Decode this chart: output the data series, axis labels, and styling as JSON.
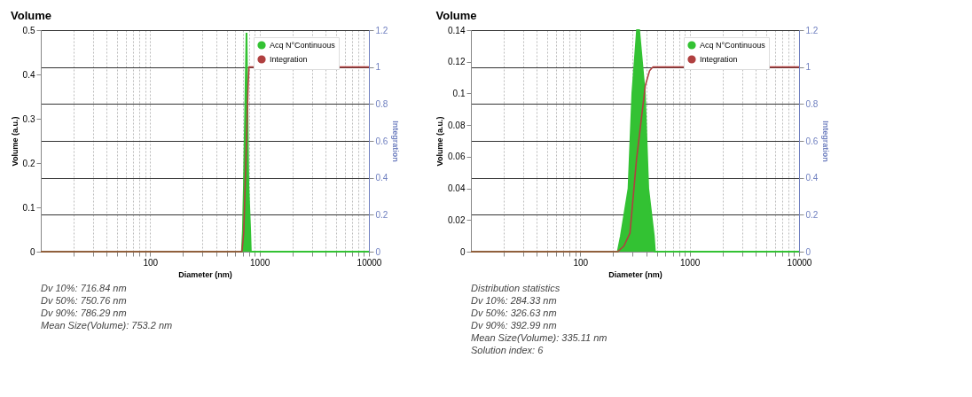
{
  "chart_data": [
    {
      "type": "area",
      "title": "Volume",
      "xlabel": "Diameter (nm)",
      "ylabel": "Volume (a.u.)",
      "y2label": "Integration",
      "log": "x",
      "grid": true,
      "legend": "top right",
      "xlim": [
        10,
        10000
      ],
      "xticks": [
        {
          "value": 20,
          "label": null
        },
        {
          "value": 30,
          "label": null
        },
        {
          "value": 40,
          "label": null
        },
        {
          "value": 50,
          "label": null
        },
        {
          "value": 60,
          "label": null
        },
        {
          "value": 70,
          "label": null
        },
        {
          "value": 80,
          "label": null
        },
        {
          "value": 90,
          "label": null
        },
        100,
        {
          "value": 200,
          "label": null
        },
        {
          "value": 300,
          "label": null
        },
        {
          "value": 400,
          "label": null
        },
        {
          "value": 500,
          "label": null
        },
        {
          "value": 600,
          "label": null
        },
        {
          "value": 700,
          "label": null
        },
        {
          "value": 800,
          "label": null
        },
        {
          "value": 900,
          "label": null
        },
        1000,
        {
          "value": 2000,
          "label": null
        },
        {
          "value": 3000,
          "label": null
        },
        {
          "value": 4000,
          "label": null
        },
        {
          "value": 5000,
          "label": null
        },
        {
          "value": 6000,
          "label": null
        },
        {
          "value": 7000,
          "label": null
        },
        {
          "value": 8000,
          "label": null
        },
        {
          "value": 9000,
          "label": null
        },
        10000
      ],
      "ylim": [
        0,
        0.5
      ],
      "yticks": [
        0,
        0.1,
        0.2,
        0.3,
        0.4,
        0.5
      ],
      "y2lim": [
        0,
        1.2
      ],
      "y2ticks": [
        0,
        0.2,
        0.4,
        0.6,
        0.8,
        1,
        1.2
      ],
      "series": [
        {
          "name": "Acq N°Continuous",
          "type": "area",
          "color": "#33c233",
          "x": [
            10,
            690,
            705,
            720,
            760,
            790,
            820,
            832,
            10000
          ],
          "values": [
            0,
            0,
            0.05,
            0.15,
            0.494,
            0.15,
            0.05,
            0,
            0
          ]
        },
        {
          "name": "Integration",
          "type": "line",
          "axis": "y2",
          "color": "#b04040",
          "x": [
            10,
            690,
            716.84,
            750.76,
            786.29,
            800,
            10000
          ],
          "values": [
            0,
            0,
            0.1,
            0.5,
            0.9,
            1,
            1
          ]
        }
      ],
      "annotations": [
        "Dv 10%: 716.84 nm",
        "Dv 50%: 750.76 nm",
        "Dv 90%: 786.29 nm",
        "Mean Size(Volume): 753.2 nm"
      ]
    },
    {
      "type": "area",
      "title": "Volume",
      "xlabel": "Diameter (nm)",
      "ylabel": "Volume (a.u.)",
      "y2label": "Integration",
      "log": "x",
      "grid": true,
      "legend": "top right",
      "xlim": [
        10,
        10000
      ],
      "xticks": [
        {
          "value": 20,
          "label": null
        },
        {
          "value": 30,
          "label": null
        },
        {
          "value": 40,
          "label": null
        },
        {
          "value": 50,
          "label": null
        },
        {
          "value": 60,
          "label": null
        },
        {
          "value": 70,
          "label": null
        },
        {
          "value": 80,
          "label": null
        },
        {
          "value": 90,
          "label": null
        },
        100,
        {
          "value": 200,
          "label": null
        },
        {
          "value": 300,
          "label": null
        },
        {
          "value": 400,
          "label": null
        },
        {
          "value": 500,
          "label": null
        },
        {
          "value": 600,
          "label": null
        },
        {
          "value": 700,
          "label": null
        },
        {
          "value": 800,
          "label": null
        },
        {
          "value": 900,
          "label": null
        },
        1000,
        {
          "value": 2000,
          "label": null
        },
        {
          "value": 3000,
          "label": null
        },
        {
          "value": 4000,
          "label": null
        },
        {
          "value": 5000,
          "label": null
        },
        {
          "value": 6000,
          "label": null
        },
        {
          "value": 7000,
          "label": null
        },
        {
          "value": 8000,
          "label": null
        },
        {
          "value": 9000,
          "label": null
        },
        10000
      ],
      "ylim": [
        0,
        0.14
      ],
      "yticks": [
        0,
        0.02,
        0.04,
        0.06,
        0.08,
        0.1,
        0.12,
        0.14
      ],
      "y2lim": [
        0,
        1.2
      ],
      "y2ticks": [
        0,
        0.2,
        0.4,
        0.6,
        0.8,
        1,
        1.2
      ],
      "series": [
        {
          "name": "Acq N°Continuous",
          "type": "area",
          "color": "#33c233",
          "x": [
            10,
            220,
            235,
            276,
            299,
            330,
            345,
            389,
            418,
            470,
            481,
            10000
          ],
          "values": [
            0,
            0,
            0.01,
            0.04,
            0.1,
            0.14,
            0.14,
            0.1,
            0.04,
            0.01,
            0,
            0
          ]
        },
        {
          "name": "Integration",
          "type": "line",
          "axis": "y2",
          "color": "#b04040",
          "x": [
            10,
            220,
            250,
            284.33,
            326.63,
            392.99,
            430,
            460,
            10000
          ],
          "values": [
            0,
            0,
            0.03,
            0.1,
            0.5,
            0.9,
            0.98,
            1,
            1
          ]
        }
      ],
      "annotations": [
        "Distribution statistics",
        "Dv 10%: 284.33 nm",
        "Dv 50%: 326.63 nm",
        "Dv 90%: 392.99 nm",
        "Mean Size(Volume): 335.11 nm",
        "Solution index: 6"
      ]
    }
  ]
}
